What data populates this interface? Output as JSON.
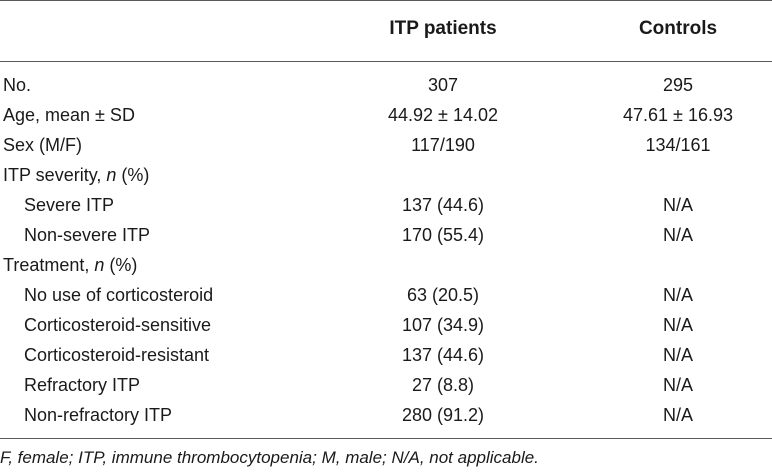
{
  "table": {
    "headers": [
      "",
      "ITP patients",
      "Controls"
    ],
    "rows": [
      {
        "label": "No.",
        "italic_part": "",
        "label_suffix": "",
        "itp": "307",
        "controls": "295",
        "indent": false
      },
      {
        "label": "Age, mean ± SD",
        "italic_part": "",
        "label_suffix": "",
        "itp": "44.92 ± 14.02",
        "controls": "47.61 ± 16.93",
        "indent": false
      },
      {
        "label": "Sex (M/F)",
        "italic_part": "",
        "label_suffix": "",
        "itp": "117/190",
        "controls": "134/161",
        "indent": false
      },
      {
        "label": "ITP severity, ",
        "italic_part": "n",
        "label_suffix": " (%)",
        "itp": "",
        "controls": "",
        "indent": false
      },
      {
        "label": "Severe ITP",
        "italic_part": "",
        "label_suffix": "",
        "itp": "137 (44.6)",
        "controls": "N/A",
        "indent": true
      },
      {
        "label": "Non-severe ITP",
        "italic_part": "",
        "label_suffix": "",
        "itp": "170 (55.4)",
        "controls": "N/A",
        "indent": true
      },
      {
        "label": "Treatment, ",
        "italic_part": "n",
        "label_suffix": " (%)",
        "itp": "",
        "controls": "",
        "indent": false
      },
      {
        "label": "No use of corticosteroid",
        "italic_part": "",
        "label_suffix": "",
        "itp": "63 (20.5)",
        "controls": "N/A",
        "indent": true
      },
      {
        "label": "Corticosteroid-sensitive",
        "italic_part": "",
        "label_suffix": "",
        "itp": "107 (34.9)",
        "controls": "N/A",
        "indent": true
      },
      {
        "label": "Corticosteroid-resistant",
        "italic_part": "",
        "label_suffix": "",
        "itp": "137 (44.6)",
        "controls": "N/A",
        "indent": true
      },
      {
        "label": "Refractory ITP",
        "italic_part": "",
        "label_suffix": "",
        "itp": "27 (8.8)",
        "controls": "N/A",
        "indent": true
      },
      {
        "label": "Non-refractory ITP",
        "italic_part": "",
        "label_suffix": "",
        "itp": "280 (91.2)",
        "controls": "N/A",
        "indent": true
      }
    ],
    "footnote": "F, female; ITP, immune thrombocytopenia; M, male; N/A, not applicable."
  }
}
